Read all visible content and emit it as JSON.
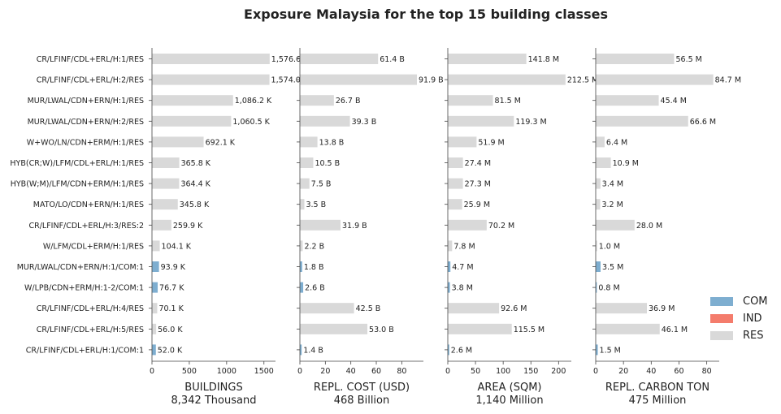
{
  "title": "Exposure Malaysia for the top 15 building classes",
  "colors": {
    "COM": "#7eaed0",
    "IND": "#f47c6c",
    "RES": "#d9d9d9"
  },
  "legend": [
    {
      "key": "COM",
      "label": "COM"
    },
    {
      "key": "IND",
      "label": "IND"
    },
    {
      "key": "RES",
      "label": "RES"
    }
  ],
  "chart_data": [
    {
      "type": "bar",
      "orientation": "horizontal",
      "categories": [
        "CR/LFINF/CDL+ERL/H:1/RES",
        "CR/LFINF/CDL+ERL/H:2/RES",
        "MUR/LWAL/CDN+ERN/H:1/RES",
        "MUR/LWAL/CDN+ERN/H:2/RES",
        "W+WO/LN/CDN+ERM/H:1/RES",
        "HYB(CR;W)/LFM/CDL+ERL/H:1/RES",
        "HYB(W;M)/LFM/CDN+ERM/H:1/RES",
        "MATO/LO/CDN+ERN/H:1/RES",
        "CR/LFINF/CDL+ERL/H:3/RES:2",
        "W/LFM/CDL+ERM/H:1/RES",
        "MUR/LWAL/CDN+ERN/H:1/COM:1",
        "W/LPB/CDN+ERM/H:1-2/COM:1",
        "CR/LFINF/CDL+ERL/H:4/RES",
        "CR/LFINF/CDL+ERL/H:5/RES",
        "CR/LFINF/CDL+ERL/H:1/COM:1"
      ],
      "occupancy": [
        "RES",
        "RES",
        "RES",
        "RES",
        "RES",
        "RES",
        "RES",
        "RES",
        "RES",
        "RES",
        "COM",
        "COM",
        "RES",
        "RES",
        "COM"
      ],
      "values": [
        1576.6,
        1574.0,
        1086.2,
        1060.5,
        692.1,
        365.8,
        364.4,
        345.8,
        259.9,
        104.1,
        93.9,
        76.7,
        70.1,
        56.0,
        52.0
      ],
      "data_labels": [
        "1,576.6",
        "1,574.0",
        "1,086.2 K",
        "1,060.5 K",
        "692.1 K",
        "365.8 K",
        "364.4 K",
        "345.8 K",
        "259.9 K",
        "104.1 K",
        "93.9 K",
        "76.7 K",
        "70.1 K",
        "56.0 K",
        "52.0 K"
      ],
      "xlabel": "BUILDINGS",
      "total_label": "8,342 Thousand",
      "xticks": [
        0,
        500,
        1000,
        1500
      ],
      "xlim": [
        0,
        1655
      ]
    },
    {
      "type": "bar",
      "orientation": "horizontal",
      "values": [
        61.4,
        91.9,
        26.7,
        39.3,
        13.8,
        10.5,
        7.5,
        3.5,
        31.9,
        2.2,
        1.8,
        2.6,
        42.5,
        53.0,
        1.4
      ],
      "data_labels": [
        "61.4 B",
        "91.9 B",
        "26.7 B",
        "39.3 B",
        "13.8 B",
        "10.5 B",
        "7.5 B",
        "3.5 B",
        "31.9 B",
        "2.2 B",
        "1.8 B",
        "2.6 B",
        "42.5 B",
        "53.0 B",
        "1.4 B"
      ],
      "xlabel": "REPL. COST (USD)",
      "total_label": "468 Billion",
      "xticks": [
        0,
        20,
        40,
        60,
        80
      ],
      "xlim": [
        0,
        97
      ]
    },
    {
      "type": "bar",
      "orientation": "horizontal",
      "values": [
        141.8,
        212.5,
        81.5,
        119.3,
        51.9,
        27.4,
        27.3,
        25.9,
        70.2,
        7.8,
        4.7,
        3.8,
        92.6,
        115.5,
        2.6
      ],
      "data_labels": [
        "141.8 M",
        "212.5 M",
        "81.5 M",
        "119.3 M",
        "51.9 M",
        "27.4 M",
        "27.3 M",
        "25.9 M",
        "70.2 M",
        "7.8 M",
        "4.7 M",
        "3.8 M",
        "92.6 M",
        "115.5 M",
        "2.6 M"
      ],
      "xlabel": "AREA (SQM)",
      "total_label": "1,140 Million",
      "xticks": [
        0,
        50,
        100,
        150,
        200
      ],
      "xlim": [
        0,
        223
      ]
    },
    {
      "type": "bar",
      "orientation": "horizontal",
      "values": [
        56.5,
        84.7,
        45.4,
        66.6,
        6.4,
        10.9,
        3.4,
        3.2,
        28.0,
        1.0,
        3.5,
        0.8,
        36.9,
        46.1,
        1.5
      ],
      "data_labels": [
        "56.5 M",
        "84.7 M",
        "45.4 M",
        "66.6 M",
        "6.4 M",
        "10.9 M",
        "3.4 M",
        "3.2 M",
        "28.0 M",
        "1.0 M",
        "3.5 M",
        "0.8 M",
        "36.9 M",
        "46.1 M",
        "1.5 M"
      ],
      "xlabel": "REPL. CARBON TON",
      "total_label": "475 Million",
      "xticks": [
        0,
        20,
        40,
        60,
        80
      ],
      "xlim": [
        0,
        89
      ]
    }
  ]
}
